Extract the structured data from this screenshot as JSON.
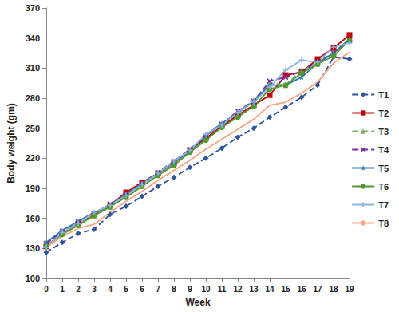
{
  "chart_data": {
    "type": "line",
    "x_label": "Week",
    "y_label": "Body weight (gm)",
    "x": [
      0,
      1,
      2,
      3,
      4,
      5,
      6,
      7,
      8,
      9,
      10,
      11,
      12,
      13,
      14,
      15,
      16,
      17,
      18,
      19
    ],
    "xlim": [
      0,
      19
    ],
    "xticks": [
      0,
      1,
      2,
      3,
      4,
      5,
      6,
      7,
      8,
      9,
      10,
      11,
      12,
      13,
      14,
      15,
      16,
      17,
      18,
      19
    ],
    "ylim": [
      100,
      370
    ],
    "yticks": [
      100,
      130,
      160,
      190,
      220,
      250,
      280,
      310,
      340,
      370
    ],
    "grid": false,
    "legend": "right",
    "series": [
      {
        "name": "T1",
        "color": "#2F5597",
        "marker": "diamond",
        "line_style": "dashed",
        "values": [
          126,
          136,
          145,
          149,
          164,
          172,
          182,
          192,
          201,
          211,
          220,
          230,
          241,
          250,
          261,
          271,
          281,
          293,
          321,
          319
        ]
      },
      {
        "name": "T2",
        "color": "#C00000",
        "marker": "square",
        "line_style": "solid",
        "values": [
          132,
          145,
          155,
          163,
          173,
          186,
          196,
          205,
          215,
          228,
          240,
          252,
          263,
          273,
          283,
          303,
          306,
          319,
          330,
          343
        ]
      },
      {
        "name": "T3",
        "color": "#7FAF6F",
        "marker": "triangle",
        "line_style": "dashed",
        "values": [
          133,
          146,
          155,
          163,
          171,
          183,
          193,
          203,
          215,
          229,
          242,
          254,
          267,
          278,
          295,
          293,
          308,
          314,
          325,
          338
        ]
      },
      {
        "name": "T4",
        "color": "#7030A0",
        "marker": "x",
        "line_style": "dashed",
        "values": [
          135,
          147,
          157,
          165,
          174,
          184,
          195,
          206,
          217,
          229,
          242,
          254,
          267,
          277,
          297,
          301,
          307,
          316,
          325,
          338
        ]
      },
      {
        "name": "T5",
        "color": "#2E75B6",
        "marker": "star",
        "line_style": "solid",
        "values": [
          136,
          148,
          157,
          166,
          173,
          184,
          195,
          205,
          216,
          227,
          243,
          255,
          265,
          277,
          293,
          293,
          301,
          315,
          325,
          339
        ]
      },
      {
        "name": "T6",
        "color": "#4E9A2E",
        "marker": "circle",
        "line_style": "solid",
        "values": [
          132,
          144,
          153,
          163,
          172,
          181,
          192,
          203,
          213,
          226,
          238,
          251,
          261,
          272,
          289,
          293,
          305,
          314,
          322,
          338
        ]
      },
      {
        "name": "T7",
        "color": "#8DB4E2",
        "marker": "plus",
        "line_style": "solid",
        "values": [
          131,
          146,
          155,
          166,
          173,
          183,
          194,
          205,
          217,
          228,
          244,
          253,
          266,
          276,
          291,
          308,
          318,
          316,
          331,
          335
        ]
      },
      {
        "name": "T8",
        "color": "#F4A582",
        "marker": "none",
        "line_style": "solid",
        "values": [
          131,
          142,
          150,
          154,
          166,
          177,
          187,
          198,
          208,
          218,
          229,
          239,
          249,
          259,
          273,
          276,
          285,
          296,
          315,
          326
        ]
      }
    ]
  }
}
